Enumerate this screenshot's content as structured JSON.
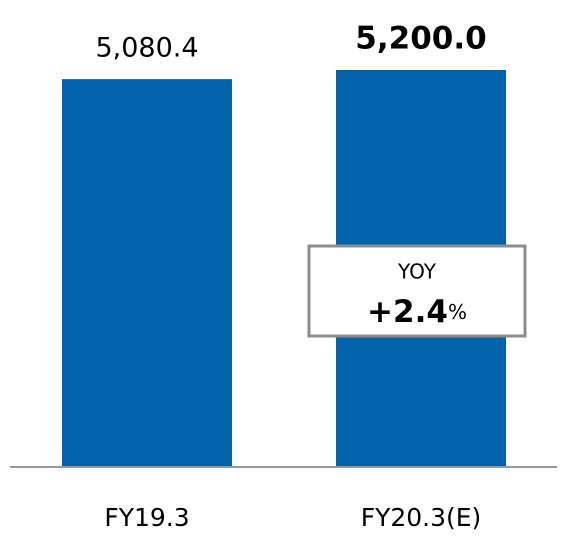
{
  "chart_data": {
    "type": "bar",
    "categories": [
      "FY19.3",
      "FY20.3(E)"
    ],
    "values": [
      5080.4,
      5200.0
    ],
    "value_labels": [
      "5,080.4",
      "5,200.0"
    ],
    "color": "#0062a8",
    "annotation": {
      "label": "YOY",
      "value": "+2.4",
      "unit": "%"
    }
  }
}
